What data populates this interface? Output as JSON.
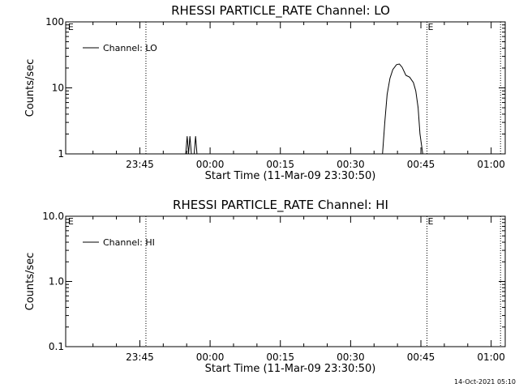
{
  "footer": {
    "timestamp": "14-Oct-2021 05:10"
  },
  "chart_data": [
    {
      "type": "line",
      "title": "RHESSI PARTICLE_RATE Channel: LO",
      "xlabel": "Start Time (11-Mar-09 23:30:50)",
      "ylabel": "Counts/sec",
      "yscale": "log",
      "xlim_minutes": [
        -0.83,
        93.0
      ],
      "ylim": [
        1,
        100
      ],
      "x_ticks": [
        {
          "label": "23:45",
          "min": 15
        },
        {
          "label": "00:00",
          "min": 30
        },
        {
          "label": "00:15",
          "min": 45
        },
        {
          "label": "00:30",
          "min": 60
        },
        {
          "label": "00:45",
          "min": 75
        },
        {
          "label": "01:00",
          "min": 90
        }
      ],
      "y_ticks": [
        {
          "label": "1",
          "value": 1
        },
        {
          "label": "10",
          "value": 10
        },
        {
          "label": "100",
          "value": 100
        }
      ],
      "series": [
        {
          "name": "Channel: LO",
          "x": [
            24.8,
            25.1,
            25.4,
            25.7,
            26.0,
            26.6,
            26.9,
            27.2,
            66.8,
            67.3,
            67.8,
            68.4,
            69.0,
            69.8,
            70.4,
            71.0,
            71.8,
            72.6,
            73.4,
            73.9,
            74.4,
            74.8,
            75.4
          ],
          "y": [
            1.0,
            1.85,
            1.0,
            1.85,
            1.0,
            1.0,
            1.85,
            1.0,
            1.0,
            3.0,
            8.0,
            14.0,
            19.0,
            22.5,
            23.0,
            20.5,
            15.5,
            14.5,
            12.0,
            9.0,
            5.0,
            2.0,
            1.0
          ]
        }
      ],
      "markers": [
        {
          "min": -0.5,
          "label": "E",
          "style": "none"
        },
        {
          "min": 16.3,
          "label": "",
          "style": "dotted"
        },
        {
          "min": 76.3,
          "label": "E",
          "style": "dotted"
        },
        {
          "min": 92.0,
          "label": "",
          "style": "dotted"
        }
      ],
      "legend": {
        "position": "top-left"
      }
    },
    {
      "type": "line",
      "title": "RHESSI PARTICLE_RATE Channel: HI",
      "xlabel": "Start Time (11-Mar-09 23:30:50)",
      "ylabel": "Counts/sec",
      "yscale": "log",
      "xlim_minutes": [
        -0.83,
        93.0
      ],
      "ylim": [
        0.1,
        10
      ],
      "x_ticks": [
        {
          "label": "23:45",
          "min": 15
        },
        {
          "label": "00:00",
          "min": 30
        },
        {
          "label": "00:15",
          "min": 45
        },
        {
          "label": "00:30",
          "min": 60
        },
        {
          "label": "00:45",
          "min": 75
        },
        {
          "label": "01:00",
          "min": 90
        }
      ],
      "y_ticks": [
        {
          "label": "0.1",
          "value": 0.1
        },
        {
          "label": "1.0",
          "value": 1
        },
        {
          "label": "10.0",
          "value": 10
        }
      ],
      "series": [
        {
          "name": "Channel: HI",
          "x": [],
          "y": []
        }
      ],
      "markers": [
        {
          "min": -0.5,
          "label": "E",
          "style": "none"
        },
        {
          "min": 16.3,
          "label": "",
          "style": "dotted"
        },
        {
          "min": 76.3,
          "label": "E",
          "style": "dotted"
        },
        {
          "min": 92.0,
          "label": "",
          "style": "dotted"
        }
      ],
      "legend": {
        "position": "top-left"
      }
    }
  ]
}
